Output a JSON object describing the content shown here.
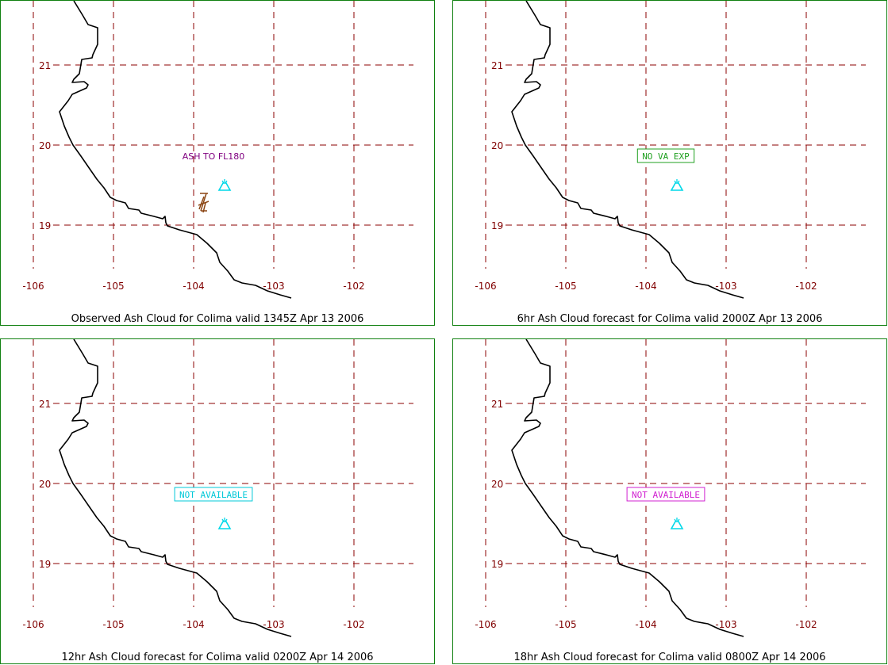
{
  "colors": {
    "grid": "#8b0000",
    "coast": "#000000",
    "volcano": "#00d8e8",
    "ash_symbol": "#8b4513",
    "frame": "#108010",
    "tick_label": "#800000"
  },
  "map": {
    "lon_labels": [
      "-106",
      "-105",
      "-104",
      "-103",
      "-102"
    ],
    "lat_labels": [
      "21",
      "20",
      "19"
    ],
    "lon_values": [
      -106,
      -105,
      -104,
      -103,
      -102
    ],
    "lat_values": [
      21,
      20,
      19
    ],
    "volcano_icon": "volcano-icon"
  },
  "panels": [
    {
      "caption": "Observed Ash Cloud for Colima valid 1345Z Apr 13 2006",
      "annotation": "ASH TO FL180",
      "annotation_style": "plain",
      "annotation_color": "#800080",
      "show_ash_symbol": true
    },
    {
      "caption": "6hr Ash Cloud forecast for Colima valid 2000Z Apr 13 2006",
      "annotation": "NO VA EXP",
      "annotation_style": "boxed",
      "annotation_color": "#20a020",
      "show_ash_symbol": false
    },
    {
      "caption": "12hr Ash Cloud forecast for Colima valid 0200Z Apr 14 2006",
      "annotation": "NOT AVAILABLE",
      "annotation_style": "boxed",
      "annotation_color": "#00c8d8",
      "show_ash_symbol": false
    },
    {
      "caption": "18hr Ash Cloud forecast for Colima valid 0800Z Apr 14 2006",
      "annotation": "NOT AVAILABLE",
      "annotation_style": "boxed",
      "annotation_color": "#d020d0",
      "show_ash_symbol": false
    }
  ]
}
